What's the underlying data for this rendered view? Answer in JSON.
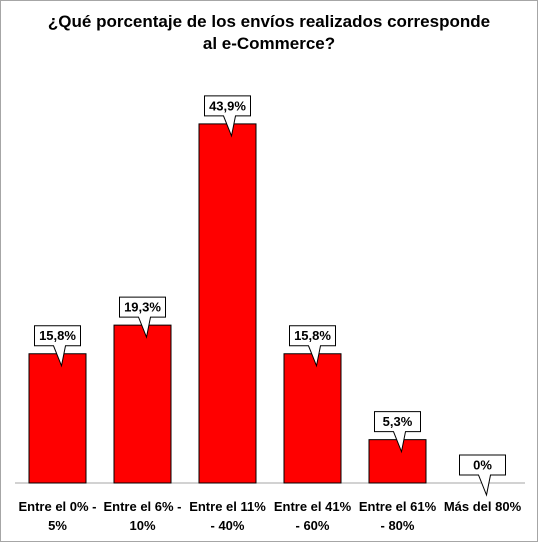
{
  "chart_data": {
    "type": "bar",
    "title": "¿Qué porcentaje de los envíos realizados corresponde al e-Commerce?",
    "categories": [
      "Entre el 0% - 5%",
      "Entre el 6% - 10%",
      "Entre el 11% - 40%",
      "Entre el 41% - 60%",
      "Entre el 61% - 80%",
      "Más del 80%"
    ],
    "values": [
      15.8,
      19.3,
      43.9,
      15.8,
      5.3,
      0
    ],
    "value_labels": [
      "15,8%",
      "19,3%",
      "43,9%",
      "15,8%",
      "5,3%",
      "0%"
    ],
    "color": "#ff0000"
  }
}
